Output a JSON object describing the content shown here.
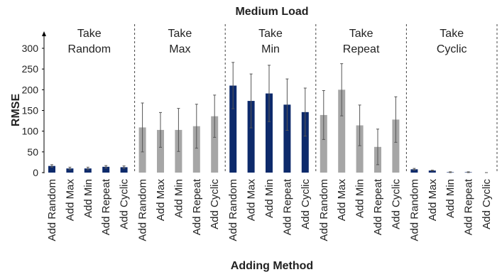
{
  "chart_data": {
    "type": "bar",
    "title": "Medium Load",
    "y_label": "RMSE",
    "x_label": "Adding Method",
    "categories": [
      "Add Random",
      "Add Max",
      "Add Min",
      "Add Repeat",
      "Add Cyclic"
    ],
    "ylim": [
      0,
      300
    ],
    "yticks": [
      0,
      50,
      100,
      150,
      200,
      250,
      300
    ],
    "groups": [
      {
        "label": [
          "Take",
          "Random"
        ],
        "color": "#0d2a6b",
        "values": [
          16,
          10,
          10,
          14,
          13
        ],
        "errors": [
          3,
          3,
          3,
          3,
          3
        ]
      },
      {
        "label": [
          "Take",
          "Max"
        ],
        "color": "#a6a6a6",
        "values": [
          109,
          103,
          103,
          112,
          136
        ],
        "errors": [
          59,
          42,
          52,
          53,
          51
        ]
      },
      {
        "label": [
          "Take",
          "Min"
        ],
        "color": "#0d2a6b",
        "values": [
          210,
          173,
          191,
          164,
          146
        ],
        "errors": [
          56,
          65,
          68,
          62,
          58
        ]
      },
      {
        "label": [
          "Take",
          "Repeat"
        ],
        "color": "#a6a6a6",
        "values": [
          139,
          200,
          114,
          62,
          128
        ],
        "errors": [
          59,
          63,
          49,
          43,
          55
        ]
      },
      {
        "label": [
          "Take",
          "Cyclic"
        ],
        "color": "#0d2a6b",
        "values": [
          8,
          5,
          1,
          1,
          0
        ],
        "errors": [
          2,
          1,
          1,
          1,
          0
        ]
      }
    ]
  }
}
